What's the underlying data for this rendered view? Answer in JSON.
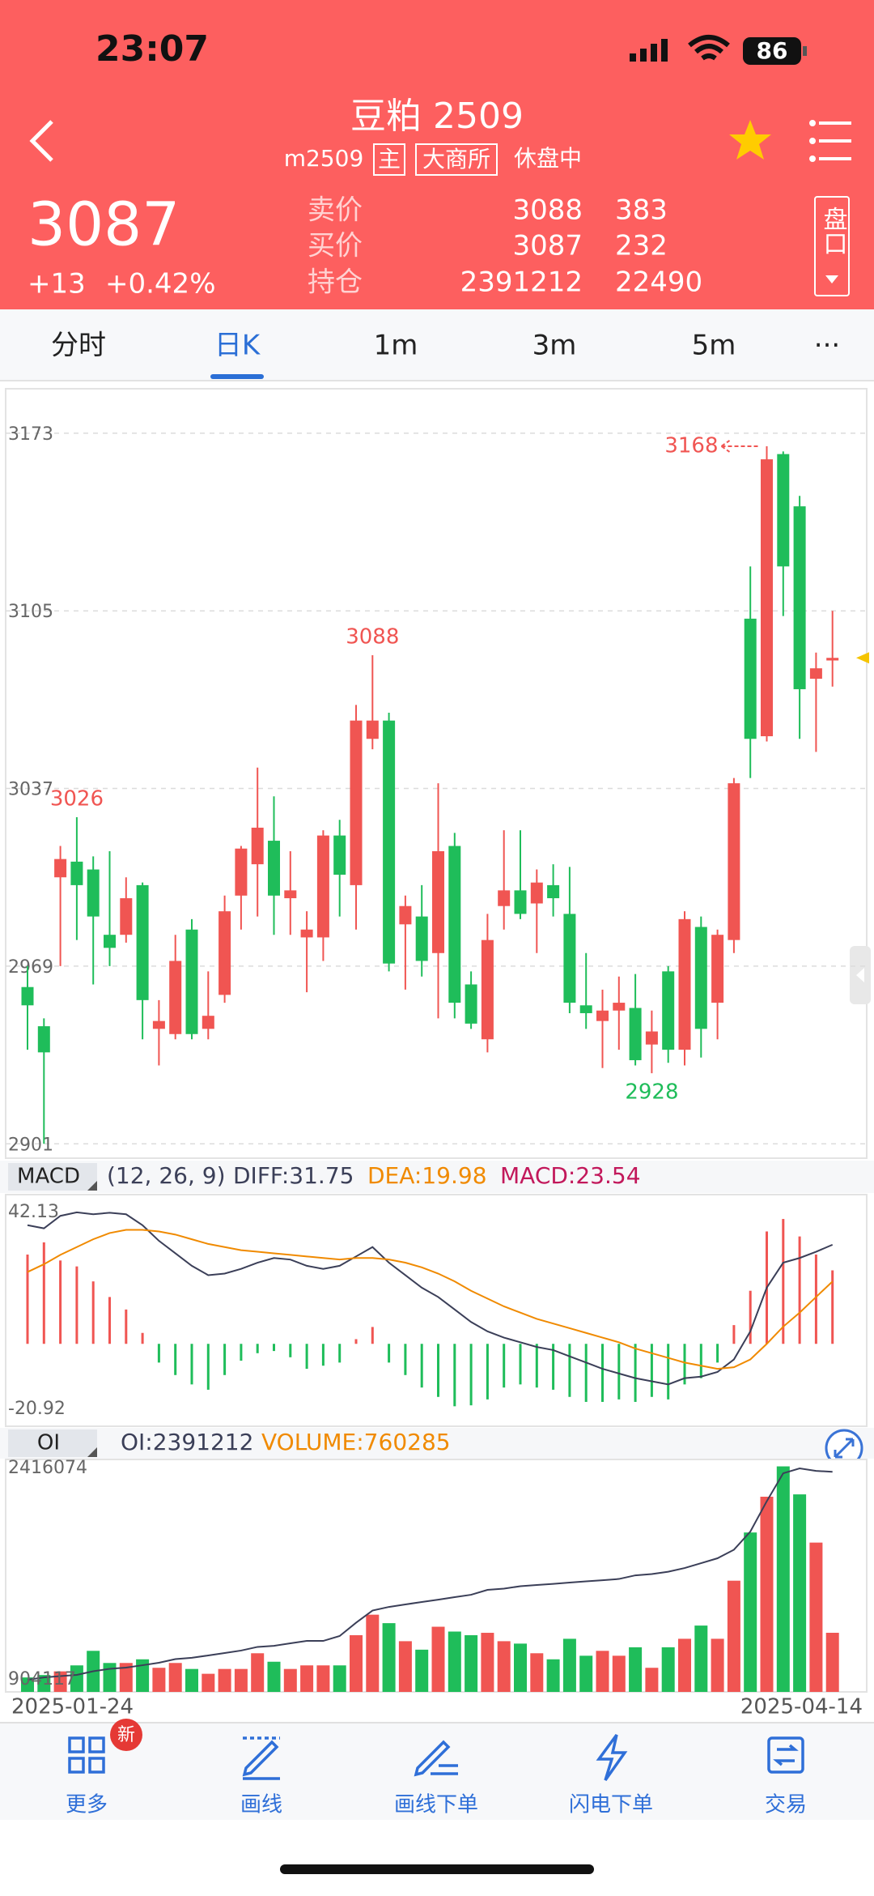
{
  "status_bar": {
    "time": "23:07",
    "battery": 86
  },
  "header": {
    "title": "豆粕 2509",
    "code": "m2509",
    "tags": [
      "主",
      "大商所"
    ],
    "status": "休盘中",
    "price": 3087,
    "change": "+13",
    "change_pct": "+0.42%",
    "quotes": [
      {
        "label": "卖价",
        "price": 3088,
        "volume": 383
      },
      {
        "label": "买价",
        "price": 3087,
        "volume": 232
      },
      {
        "label": "持仓",
        "price": 2391212,
        "volume": 22490
      }
    ],
    "side_button": "盘口"
  },
  "tabs": [
    "分时",
    "日K",
    "1m",
    "3m",
    "5m",
    "···"
  ],
  "active_tab": 1,
  "chart_data": [
    {
      "type": "candlestick",
      "up_color": "#f05552",
      "down_color": "#1fbd5a",
      "grid": true,
      "ylim": [
        2895.5,
        3190
      ],
      "yticks": [
        3173,
        3105,
        3037,
        2969,
        2901
      ],
      "open": [
        2961,
        2946,
        3003,
        3009,
        3006,
        2981,
        2981,
        3000,
        2945,
        2943,
        2983,
        2945,
        2958,
        2996,
        3008,
        3017,
        2995,
        2980,
        2980,
        3019,
        3000,
        3056,
        3063,
        2985,
        2988,
        2974,
        3015,
        2962,
        2941,
        2992,
        2998,
        2993,
        3000,
        2989,
        2954,
        2948,
        2952,
        2953,
        2939,
        2967,
        2937,
        2984,
        2955,
        2979,
        3102,
        3057,
        3165,
        3145,
        3079,
        3086
      ],
      "high": [
        2969,
        2949,
        3015,
        3026,
        3011,
        3013,
        3003,
        3001,
        2956,
        2981,
        2987,
        2967,
        2996,
        3015,
        3045,
        3034,
        3013,
        2990,
        3021,
        3025,
        3069,
        3088,
        3066,
        2996,
        3000,
        3039,
        3020,
        2967,
        2989,
        3021,
        3021,
        3006,
        3008,
        3007,
        2974,
        2960,
        2965,
        2966,
        2952,
        2969,
        2990,
        2988,
        2983,
        3041,
        3122,
        3168,
        3166,
        3149,
        3089,
        3105
      ],
      "low": [
        2937,
        2901,
        2969,
        2979,
        2962,
        2969,
        2978,
        2941,
        2931,
        2941,
        2941,
        2941,
        2955,
        2983,
        2988,
        2981,
        2981,
        2959,
        2971,
        2988,
        2983,
        3052,
        2967,
        2960,
        2965,
        2949,
        2949,
        2945,
        2936,
        2983,
        2987,
        2974,
        2988,
        2951,
        2945,
        2930,
        2937,
        2931,
        2928,
        2932,
        2931,
        2934,
        2941,
        2974,
        3041,
        3055,
        3103,
        3056,
        3051,
        3076
      ],
      "close": [
        2954,
        2936,
        3010,
        3000,
        2988,
        2976,
        2995,
        2956,
        2948,
        2971,
        2943,
        2950,
        2990,
        3014,
        3022,
        2996,
        2998,
        2983,
        3019,
        3004,
        3063,
        3063,
        2970,
        2992,
        2971,
        3013,
        2955,
        2947,
        2979,
        2998,
        2989,
        3001,
        2995,
        2955,
        2951,
        2952,
        2955,
        2933,
        2944,
        2937,
        2987,
        2945,
        2981,
        3039,
        3056,
        3163,
        3122,
        3075,
        3083,
        3087
      ]
    },
    {
      "type": "macd",
      "title": "MACD",
      "params": "(12, 26, 9)",
      "ylim": [
        -26.4,
        47.8
      ],
      "yticks": [
        42.13,
        -20.92
      ],
      "series": [
        {
          "name": "DIFF:31.75",
          "color": "#3b3f58",
          "values": [
            38,
            37,
            41,
            42.13,
            41.5,
            42,
            41.5,
            38,
            33,
            29,
            25,
            22,
            22.5,
            24,
            26,
            27.5,
            27,
            25,
            24,
            25,
            28,
            31,
            26,
            22,
            18,
            15,
            11,
            7,
            4,
            2,
            0.5,
            -1,
            -2,
            -4,
            -6,
            -8,
            -9.5,
            -11,
            -12,
            -13,
            -11,
            -10.5,
            -9,
            -5,
            4,
            18,
            26,
            27.5,
            29.5,
            31.75
          ]
        },
        {
          "name": "DEA:19.98",
          "color": "#f08a00",
          "values": [
            23,
            25.5,
            28.5,
            31,
            33.5,
            35.5,
            36.5,
            36.5,
            36,
            35,
            33.5,
            32,
            31,
            30,
            29.5,
            29,
            28.5,
            28,
            27.5,
            27,
            27.5,
            27.5,
            27,
            26,
            24.5,
            22.5,
            20,
            17,
            14.5,
            12,
            10,
            8,
            6.5,
            5,
            3.5,
            2,
            0.5,
            -1.5,
            -3,
            -4.5,
            -6,
            -7,
            -8,
            -7.5,
            -5,
            0,
            5.5,
            10,
            15,
            19.98
          ]
        },
        {
          "name": "MACD:23.54",
          "color": "#c2185b",
          "up_color": "#f05552",
          "down_color": "#1fbd5a",
          "values": [
            28.6,
            32.5,
            26.7,
            24.8,
            20,
            15,
            11,
            3.5,
            -6,
            -10,
            -13,
            -14.7,
            -10,
            -5.4,
            -3,
            -2.3,
            -4.3,
            -8,
            -7,
            -6,
            1.5,
            5.4,
            -6,
            -10,
            -14,
            -17,
            -20,
            -19.7,
            -17.8,
            -14,
            -13,
            -14,
            -14.7,
            -17,
            -18.6,
            -18.6,
            -17.8,
            -18.6,
            -17,
            -17.8,
            -13,
            -11,
            -6,
            6,
            17,
            36,
            40,
            34.4,
            28.6,
            23.54
          ]
        }
      ]
    },
    {
      "type": "oi-volume",
      "title": "OI",
      "categories": [
        "2025-01-24",
        null,
        null,
        null,
        null,
        null,
        null,
        null,
        null,
        null,
        null,
        null,
        null,
        null,
        null,
        null,
        null,
        null,
        null,
        null,
        null,
        null,
        null,
        null,
        null,
        null,
        null,
        null,
        null,
        null,
        null,
        null,
        null,
        null,
        null,
        null,
        null,
        null,
        null,
        null,
        null,
        null,
        null,
        null,
        null,
        null,
        null,
        null,
        null,
        "2025-04-14"
      ],
      "ylim": [
        817200,
        2479800
      ],
      "yticks": [
        2416074,
        904117
      ],
      "y2lim": [
        0,
        2989000
      ],
      "series": [
        {
          "name": "OI:2391212",
          "color": "#3b3f58",
          "values": [
            904117,
            921000,
            930000,
            939000,
            965000,
            982000,
            991000,
            1008000,
            1026000,
            1052000,
            1061000,
            1078000,
            1095000,
            1113000,
            1139000,
            1147000,
            1165000,
            1182000,
            1182000,
            1217000,
            1312000,
            1399000,
            1425000,
            1443000,
            1460000,
            1477000,
            1495000,
            1512000,
            1547000,
            1556000,
            1573000,
            1582000,
            1590000,
            1599000,
            1608000,
            1616000,
            1625000,
            1651000,
            1660000,
            1677000,
            1703000,
            1738000,
            1773000,
            1834000,
            1964000,
            2181000,
            2381000,
            2416074,
            2398000,
            2391212
          ]
        },
        {
          "name": "VOLUME:760285",
          "color": "#f08a00",
          "axis": "y2",
          "values": [
            186000,
            217000,
            264000,
            341000,
            528000,
            372000,
            372000,
            419000,
            310000,
            372000,
            295000,
            233000,
            295000,
            295000,
            497000,
            388000,
            295000,
            341000,
            341000,
            341000,
            729000,
            993000,
            884000,
            652000,
            543000,
            838000,
            776000,
            729000,
            760000,
            652000,
            621000,
            497000,
            419000,
            683000,
            465000,
            528000,
            465000,
            574000,
            310000,
            574000,
            683000,
            853000,
            683000,
            1430000,
            2050000,
            2510000,
            2900000,
            2540000,
            1920000,
            760285
          ]
        }
      ]
    }
  ],
  "nav": [
    {
      "label": "更多",
      "badge": "新"
    },
    {
      "label": "画线"
    },
    {
      "label": "画线下单"
    },
    {
      "label": "闪电下单"
    },
    {
      "label": "交易"
    }
  ]
}
